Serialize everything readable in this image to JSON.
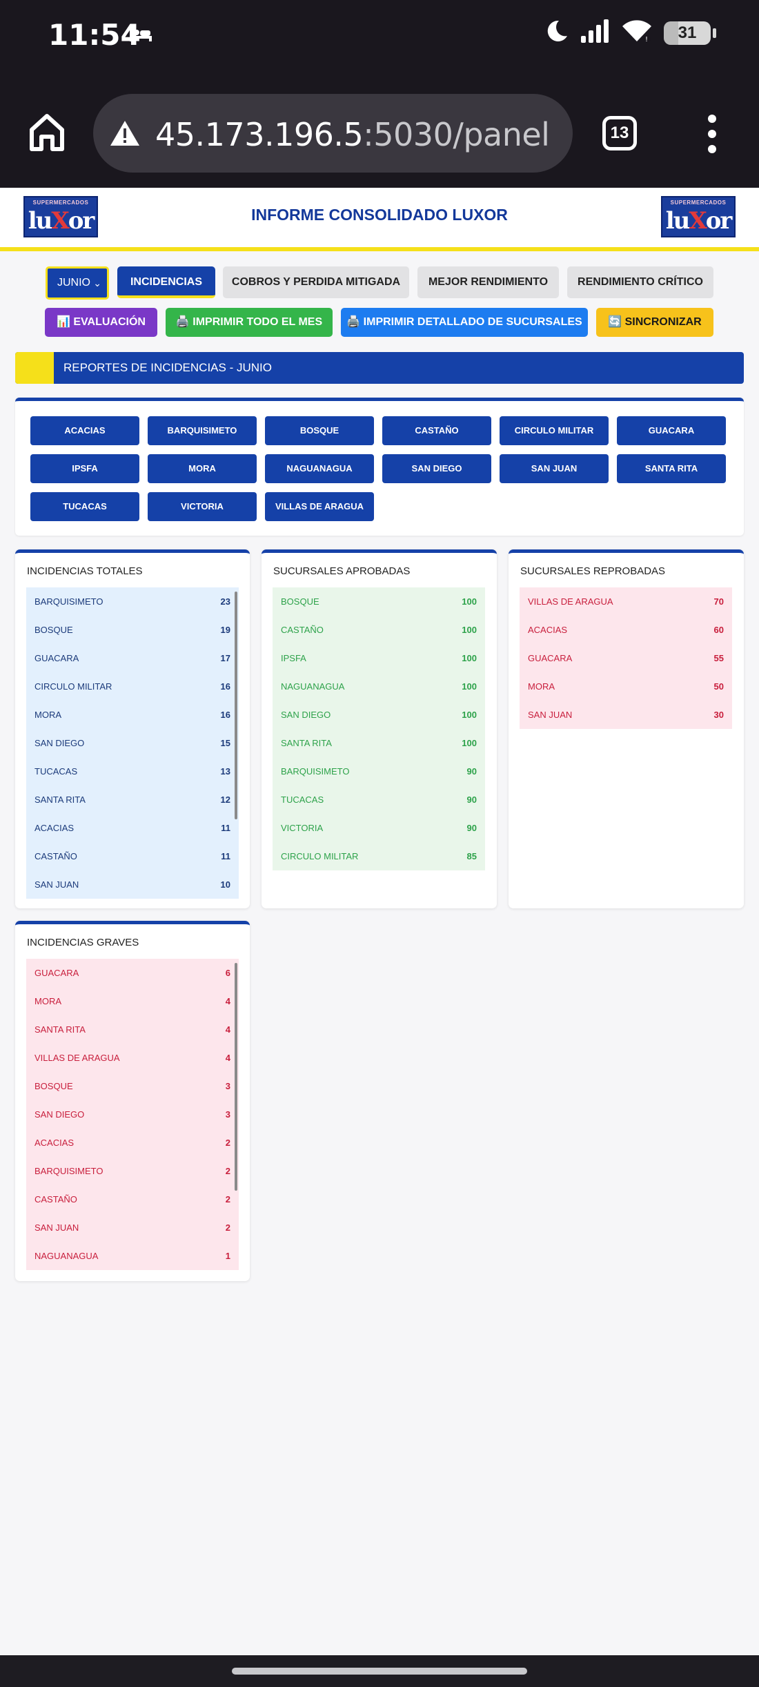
{
  "status": {
    "time": "11:54",
    "battery": "31",
    "battery_level": 0.31
  },
  "browser": {
    "url_host": "45.173.196.5",
    "url_rest": ":5030/panel",
    "tab_count": "13"
  },
  "header": {
    "title": "INFORME CONSOLIDADO LUXOR",
    "logo_small": "SUPERMERCADOS",
    "logo_big_a": "lu",
    "logo_big_x": "X",
    "logo_big_b": "or"
  },
  "toolbar": {
    "month": "JUNIO",
    "tab_incidencias": "INCIDENCIAS",
    "tab_cobros": "COBROS Y PERDIDA MITIGADA",
    "tab_mejor": "MEJOR RENDIMIENTO",
    "tab_critico": "RENDIMIENTO CRÍTICO",
    "evaluacion": "📊 EVALUACIÓN",
    "imprimir_mes": "🖨️ IMPRIMIR TODO EL MES",
    "imprimir_detallado": "🖨️ IMPRIMIR DETALLADO DE SUCURSALES",
    "sincronizar": "🔄 SINCRONIZAR"
  },
  "section": {
    "title": "REPORTES DE INCIDENCIAS - JUNIO"
  },
  "branches": [
    "ACACIAS",
    "BARQUISIMETO",
    "BOSQUE",
    "CASTAÑO",
    "CIRCULO MILITAR",
    "GUACARA",
    "IPSFA",
    "MORA",
    "NAGUANAGUA",
    "SAN DIEGO",
    "SAN JUAN",
    "SANTA RITA",
    "TUCACAS",
    "VICTORIA",
    "VILLAS DE ARAGUA"
  ],
  "cards": {
    "totales": {
      "title": "INCIDENCIAS TOTALES",
      "items": [
        {
          "name": "BARQUISIMETO",
          "value": "23"
        },
        {
          "name": "BOSQUE",
          "value": "19"
        },
        {
          "name": "GUACARA",
          "value": "17"
        },
        {
          "name": "CIRCULO MILITAR",
          "value": "16"
        },
        {
          "name": "MORA",
          "value": "16"
        },
        {
          "name": "SAN DIEGO",
          "value": "15"
        },
        {
          "name": "TUCACAS",
          "value": "13"
        },
        {
          "name": "SANTA RITA",
          "value": "12"
        },
        {
          "name": "ACACIAS",
          "value": "11"
        },
        {
          "name": "CASTAÑO",
          "value": "11"
        },
        {
          "name": "SAN JUAN",
          "value": "10"
        }
      ]
    },
    "aprobadas": {
      "title": "SUCURSALES APROBADAS",
      "items": [
        {
          "name": "BOSQUE",
          "value": "100"
        },
        {
          "name": "CASTAÑO",
          "value": "100"
        },
        {
          "name": "IPSFA",
          "value": "100"
        },
        {
          "name": "NAGUANAGUA",
          "value": "100"
        },
        {
          "name": "SAN DIEGO",
          "value": "100"
        },
        {
          "name": "SANTA RITA",
          "value": "100"
        },
        {
          "name": "BARQUISIMETO",
          "value": "90"
        },
        {
          "name": "TUCACAS",
          "value": "90"
        },
        {
          "name": "VICTORIA",
          "value": "90"
        },
        {
          "name": "CIRCULO MILITAR",
          "value": "85"
        }
      ]
    },
    "reprobadas": {
      "title": "SUCURSALES REPROBADAS",
      "items": [
        {
          "name": "VILLAS DE ARAGUA",
          "value": "70"
        },
        {
          "name": "ACACIAS",
          "value": "60"
        },
        {
          "name": "GUACARA",
          "value": "55"
        },
        {
          "name": "MORA",
          "value": "50"
        },
        {
          "name": "SAN JUAN",
          "value": "30"
        }
      ]
    },
    "graves": {
      "title": "INCIDENCIAS GRAVES",
      "items": [
        {
          "name": "GUACARA",
          "value": "6"
        },
        {
          "name": "MORA",
          "value": "4"
        },
        {
          "name": "SANTA RITA",
          "value": "4"
        },
        {
          "name": "VILLAS DE ARAGUA",
          "value": "4"
        },
        {
          "name": "BOSQUE",
          "value": "3"
        },
        {
          "name": "SAN DIEGO",
          "value": "3"
        },
        {
          "name": "ACACIAS",
          "value": "2"
        },
        {
          "name": "BARQUISIMETO",
          "value": "2"
        },
        {
          "name": "CASTAÑO",
          "value": "2"
        },
        {
          "name": "SAN JUAN",
          "value": "2"
        },
        {
          "name": "NAGUANAGUA",
          "value": "1"
        }
      ]
    }
  }
}
